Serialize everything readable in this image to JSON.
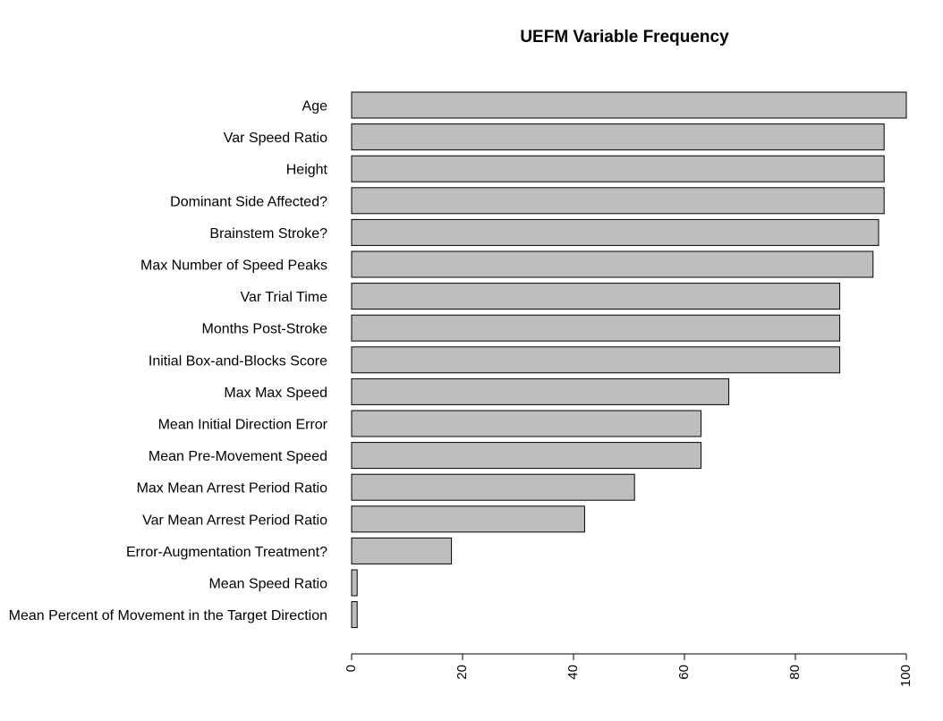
{
  "chart_data": {
    "type": "bar",
    "orientation": "horizontal",
    "title": "UEFM Variable Frequency",
    "xlabel": "",
    "ylabel": "",
    "categories": [
      "Age",
      "Var Speed Ratio",
      "Height",
      "Dominant Side Affected?",
      "Brainstem Stroke?",
      "Max Number of Speed Peaks",
      "Var Trial Time",
      "Months Post-Stroke",
      "Initial Box-and-Blocks Score",
      "Max Max Speed",
      "Mean Initial Direction Error",
      "Mean Pre-Movement Speed",
      "Max Mean Arrest Period Ratio",
      "Var Mean Arrest Period Ratio",
      "Error-Augmentation Treatment?",
      "Mean Speed Ratio",
      "Mean Percent of Movement in the Target Direction"
    ],
    "values": [
      100,
      96,
      96,
      96,
      95,
      94,
      88,
      88,
      88,
      68,
      63,
      63,
      51,
      42,
      18,
      1,
      1
    ],
    "xlim": [
      0,
      100
    ],
    "xticks": [
      0,
      20,
      40,
      60,
      80,
      100
    ],
    "grid": false,
    "legend": "none",
    "bar_color": "#bebebe",
    "bar_edge_color": "#000000"
  }
}
